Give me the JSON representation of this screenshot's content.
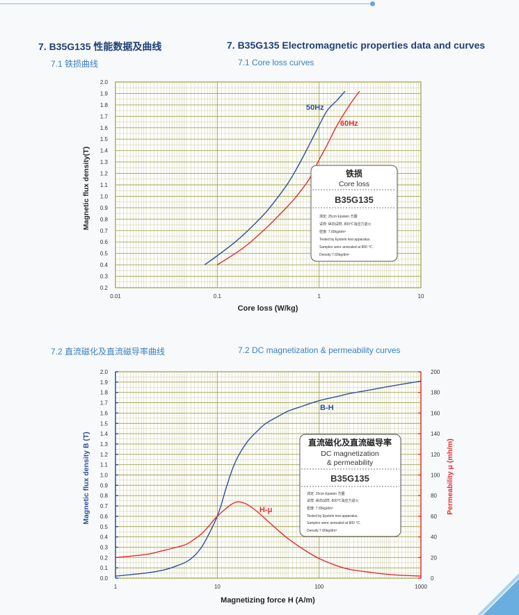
{
  "headings": {
    "cn_title": "7. B35G135 性能数据及曲线",
    "en_title": "7. B35G135 Electromagnetic properties data and curves",
    "cn_sub1": "7.1 铁损曲线",
    "en_sub1": "7.1 Core loss curves",
    "cn_sub2": "7.2 直流磁化及直流磁导率曲线",
    "en_sub2": "7.2 DC magnetization & permeability curves"
  },
  "colors": {
    "blue": "#2b4e9a",
    "red": "#e32b2b",
    "frame": "#a3a34e",
    "heading": "#1f3f75",
    "subheading": "#3a7fc0"
  },
  "chart_data": [
    {
      "type": "line",
      "xscale": "log",
      "xlim": [
        0.01,
        10
      ],
      "ylim": [
        0.2,
        2.0
      ],
      "x_ticks": [
        "0.01",
        "0.1",
        "1",
        "10"
      ],
      "y_ticks": [
        "0.2",
        "0.3",
        "0.4",
        "0.5",
        "0.6",
        "0.7",
        "0.8",
        "0.9",
        "1.0",
        "1.1",
        "1.2",
        "1.3",
        "1.4",
        "1.5",
        "1.6",
        "1.7",
        "1.8",
        "1.9",
        "2.0"
      ],
      "xlabel": "Core loss (W/kg)",
      "ylabel": "Magnetic flux density(T)",
      "series": [
        {
          "name": "50Hz",
          "color": "#2b4e9a",
          "x": [
            0.075,
            0.1,
            0.15,
            0.2,
            0.3,
            0.4,
            0.5,
            0.6,
            0.7,
            0.8,
            0.9,
            1.0,
            1.2,
            1.5,
            1.8
          ],
          "y": [
            0.4,
            0.48,
            0.6,
            0.7,
            0.86,
            1.0,
            1.12,
            1.24,
            1.35,
            1.45,
            1.54,
            1.62,
            1.75,
            1.84,
            1.92
          ]
        },
        {
          "name": "60Hz",
          "color": "#e32b2b",
          "x": [
            0.1,
            0.15,
            0.2,
            0.3,
            0.4,
            0.5,
            0.6,
            0.8,
            1.0,
            1.2,
            1.5,
            2.0,
            2.5
          ],
          "y": [
            0.4,
            0.5,
            0.58,
            0.72,
            0.83,
            0.92,
            1.0,
            1.15,
            1.32,
            1.45,
            1.62,
            1.8,
            1.92
          ]
        }
      ],
      "legend_box": {
        "title_cn": "铁损",
        "title_en": "Core loss",
        "grade": "B35G135",
        "notes": [
          "测定: 25cm Epstein 方圈",
          "试样: 纵向试样, 800℃消应力退火",
          "密度: 7.65kg/dm³",
          "Tested by Epstein test apparatus.",
          "Samples were annealed at 800 ℃.",
          "Density:7.65kg/dm³"
        ]
      }
    },
    {
      "type": "line",
      "xscale": "log",
      "xlim": [
        1,
        1000
      ],
      "ylim": [
        0,
        2.0
      ],
      "y2lim": [
        0,
        200
      ],
      "x_ticks": [
        "1",
        "10",
        "100",
        "1000"
      ],
      "y_ticks": [
        "0.0",
        "0.1",
        "0.2",
        "0.3",
        "0.4",
        "0.5",
        "0.6",
        "0.7",
        "0.8",
        "0.9",
        "1.0",
        "1.1",
        "1.2",
        "1.3",
        "1.4",
        "1.5",
        "1.6",
        "1.7",
        "1.8",
        "1.9",
        "2.0"
      ],
      "y2_ticks": [
        "0",
        "20",
        "40",
        "60",
        "80",
        "100",
        "120",
        "140",
        "160",
        "180",
        "200"
      ],
      "xlabel": "Magnetizing force H (A/m)",
      "ylabel": "Magnetic flux density B (T)",
      "y2label": "Permeability μ (mh/m)",
      "series": [
        {
          "name": "B-H",
          "color": "#2b4e9a",
          "axis": "left",
          "x": [
            1,
            2,
            3,
            4,
            5,
            6,
            7,
            8,
            9,
            10,
            11,
            12,
            14,
            16,
            20,
            25,
            30,
            40,
            50,
            70,
            100,
            150,
            200,
            300,
            500,
            1000
          ],
          "y": [
            0.02,
            0.05,
            0.08,
            0.12,
            0.16,
            0.22,
            0.3,
            0.4,
            0.5,
            0.6,
            0.72,
            0.85,
            1.05,
            1.18,
            1.33,
            1.43,
            1.5,
            1.57,
            1.62,
            1.67,
            1.72,
            1.76,
            1.79,
            1.82,
            1.86,
            1.91
          ]
        },
        {
          "name": "H-μ",
          "color": "#e32b2b",
          "axis": "right",
          "x": [
            1,
            2,
            3,
            4,
            5,
            6,
            7,
            8,
            9,
            10,
            12,
            14,
            16,
            18,
            20,
            25,
            30,
            40,
            50,
            70,
            100,
            150,
            200,
            300,
            500,
            1000
          ],
          "y": [
            20,
            23,
            27,
            30,
            33,
            38,
            43,
            49,
            55,
            60,
            67,
            72,
            74,
            73,
            71,
            64,
            57,
            46,
            38,
            28,
            19,
            12,
            8.5,
            6,
            3.5,
            2
          ]
        }
      ],
      "legend_box": {
        "title_cn": "直流磁化及直流磁导率",
        "title_en1": "DC magnetization",
        "title_en2": "& permeability",
        "grade": "B35G135",
        "notes": [
          "测定: 25cm Epstein 方圈",
          "试样: 纵向试样, 800℃消应力退火",
          "密度: 7.65kg/dm³",
          "Tested by Epstein test apparatus.",
          "Samples were annealed at 800 ℃.",
          "Density:7.65kg/dm³"
        ]
      }
    }
  ]
}
